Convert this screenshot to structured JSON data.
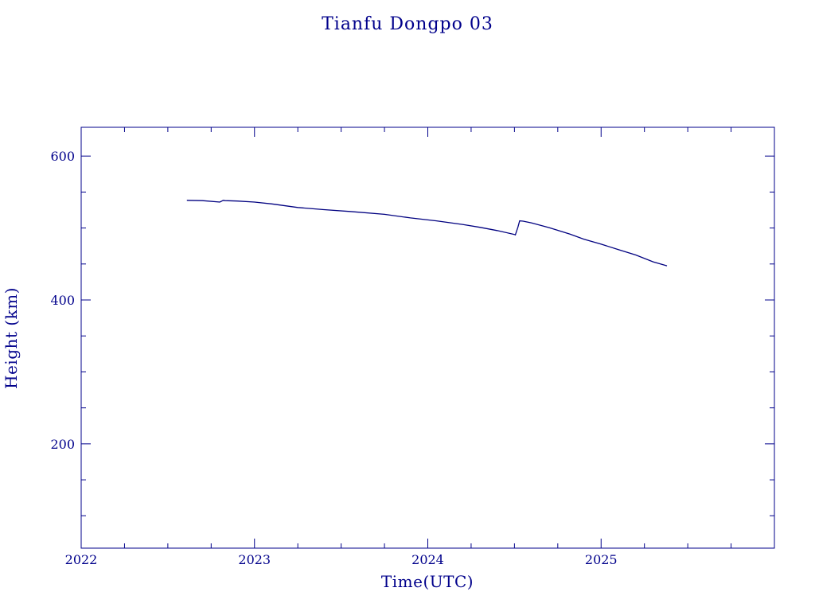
{
  "chart_data": {
    "type": "line",
    "title": "Tianfu Dongpo 03",
    "xlabel": "Time(UTC)",
    "ylabel": "Height (km)",
    "xlim": [
      2022.0,
      2026.0
    ],
    "ylim": [
      55,
      640
    ],
    "x_ticks": [
      2022,
      2023,
      2024,
      2025
    ],
    "x_tick_labels": [
      "2022",
      "2023",
      "2024",
      "2025"
    ],
    "y_ticks": [
      200,
      400,
      600
    ],
    "y_tick_labels": [
      "200",
      "400",
      "600"
    ],
    "grid": false,
    "line_color": "#000080",
    "frame_color": "#00008b",
    "series": [
      {
        "x": [
          2022.61,
          2022.7,
          2022.8,
          2022.82,
          2022.83,
          2022.9,
          2023.0,
          2023.1,
          2023.25,
          2023.4,
          2023.55,
          2023.75,
          2023.9,
          2024.05,
          2024.2,
          2024.3,
          2024.4,
          2024.5,
          2024.505,
          2024.515,
          2024.52,
          2024.53,
          2024.55,
          2024.6,
          2024.7,
          2024.82,
          2024.9,
          2025.0,
          2025.1,
          2025.2,
          2025.3,
          2025.38
        ],
        "y": [
          538.5,
          538.0,
          536.0,
          538.5,
          538.0,
          537.5,
          536.0,
          533.5,
          528.5,
          525.5,
          523.0,
          519.0,
          514.0,
          510.0,
          505.0,
          501.0,
          496.5,
          491.0,
          490.5,
          497.5,
          501.0,
          510.0,
          509.5,
          507.0,
          500.5,
          491.5,
          484.5,
          477.5,
          470.0,
          462.5,
          453.0,
          447.5
        ]
      }
    ]
  }
}
